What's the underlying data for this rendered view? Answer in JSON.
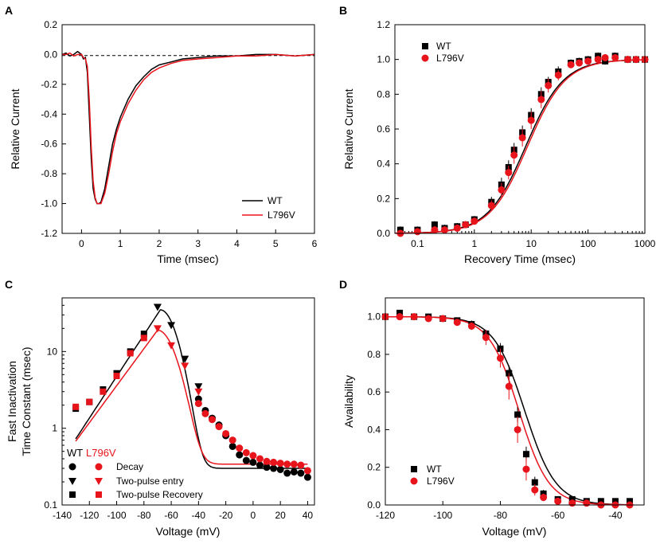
{
  "colors": {
    "wt": "#000000",
    "mut": "#e8141c",
    "axis": "#000000"
  },
  "chart_data": [
    {
      "panel": "A",
      "type": "line",
      "xlabel": "Time (msec)",
      "ylabel": "Relative Current",
      "xlim": [
        -0.5,
        6
      ],
      "ylim": [
        -1.2,
        0.2
      ],
      "xticks": [
        0,
        1,
        2,
        3,
        4,
        5,
        6
      ],
      "xtick_labels": [
        "0",
        "1",
        "2",
        "3",
        "4",
        "5",
        "6"
      ],
      "yticks": [
        -1.2,
        -1.0,
        -0.8,
        -0.6,
        -0.4,
        -0.2,
        0.0,
        0.2
      ],
      "ytick_labels": [
        "-1.2",
        "-1.0",
        "-0.8",
        "-0.6",
        "-0.4",
        "-0.2",
        "0.0",
        "0.2"
      ],
      "zero_line": 0,
      "legend_position": "bottom-right",
      "series": [
        {
          "name": "WT",
          "color": "#000000",
          "x": [
            -0.5,
            -0.4,
            -0.3,
            -0.2,
            -0.1,
            0.0,
            0.05,
            0.1,
            0.15,
            0.2,
            0.25,
            0.3,
            0.35,
            0.4,
            0.45,
            0.5,
            0.6,
            0.7,
            0.8,
            0.9,
            1.0,
            1.2,
            1.4,
            1.6,
            1.8,
            2.0,
            2.3,
            2.6,
            3.0,
            3.5,
            4.0,
            4.5,
            5.0,
            5.5,
            6.0
          ],
          "y": [
            0,
            0.01,
            -0.01,
            0.0,
            0.02,
            0.0,
            -0.03,
            -0.02,
            -0.12,
            -0.4,
            -0.7,
            -0.9,
            -0.97,
            -1.0,
            -1.0,
            -0.99,
            -0.9,
            -0.75,
            -0.6,
            -0.5,
            -0.42,
            -0.3,
            -0.21,
            -0.15,
            -0.1,
            -0.07,
            -0.05,
            -0.03,
            -0.02,
            -0.01,
            -0.01,
            0.0,
            0.0,
            -0.01,
            0.0
          ]
        },
        {
          "name": "L796V",
          "color": "#e8141c",
          "x": [
            -0.5,
            -0.4,
            -0.3,
            -0.2,
            -0.1,
            0.0,
            0.05,
            0.1,
            0.15,
            0.2,
            0.25,
            0.3,
            0.35,
            0.4,
            0.45,
            0.5,
            0.6,
            0.7,
            0.8,
            0.9,
            1.0,
            1.2,
            1.4,
            1.6,
            1.8,
            2.0,
            2.3,
            2.6,
            3.0,
            3.5,
            4.0,
            4.5,
            5.0,
            5.5,
            6.0
          ],
          "y": [
            0,
            0.0,
            0.01,
            -0.01,
            0.0,
            0.0,
            -0.02,
            -0.03,
            -0.08,
            -0.3,
            -0.62,
            -0.85,
            -0.96,
            -1.0,
            -1.0,
            -1.0,
            -0.93,
            -0.8,
            -0.65,
            -0.53,
            -0.45,
            -0.33,
            -0.24,
            -0.17,
            -0.12,
            -0.09,
            -0.06,
            -0.04,
            -0.03,
            -0.02,
            -0.01,
            -0.01,
            0.0,
            -0.01,
            0.0
          ]
        }
      ]
    },
    {
      "panel": "B",
      "type": "scatter",
      "xscale": "log",
      "xlabel": "Recovery Time (msec)",
      "ylabel": "Relative Current",
      "xlim": [
        0.04,
        1000
      ],
      "ylim": [
        0,
        1.2
      ],
      "xticks": [
        0.1,
        1,
        10,
        100,
        1000
      ],
      "xtick_labels": [
        "0.1",
        "1",
        "10",
        "100",
        "1000"
      ],
      "yticks": [
        0,
        0.2,
        0.4,
        0.6,
        0.8,
        1.0,
        1.2
      ],
      "ytick_labels": [
        "0.0",
        "0.2",
        "0.4",
        "0.6",
        "0.8",
        "1.0",
        "1.2"
      ],
      "legend_position": "top-left",
      "series": [
        {
          "name": "WT",
          "color": "#000000",
          "marker": "square",
          "x": [
            0.05,
            0.1,
            0.2,
            0.3,
            0.5,
            0.7,
            1,
            2,
            3,
            4,
            5,
            7,
            10,
            15,
            20,
            30,
            50,
            70,
            100,
            150,
            200,
            300,
            500,
            700,
            1000
          ],
          "y": [
            0.02,
            0.02,
            0.05,
            0.03,
            0.04,
            0.05,
            0.08,
            0.18,
            0.28,
            0.38,
            0.48,
            0.58,
            0.68,
            0.8,
            0.87,
            0.93,
            0.98,
            0.99,
            1.0,
            1.02,
            0.99,
            1.02,
            1.0,
            1.0,
            1.0
          ],
          "err": [
            0.02,
            0.02,
            0.02,
            0.02,
            0.02,
            0.02,
            0.02,
            0.03,
            0.04,
            0.04,
            0.04,
            0.04,
            0.04,
            0.04,
            0.03,
            0.03,
            0.02,
            0.02,
            0.02,
            0.02,
            0.02,
            0.02,
            0.02,
            0.02,
            0.02
          ]
        },
        {
          "name": "L796V",
          "color": "#e8141c",
          "marker": "circle",
          "x": [
            0.05,
            0.1,
            0.2,
            0.3,
            0.5,
            0.7,
            1,
            2,
            3,
            4,
            5,
            7,
            10,
            15,
            20,
            30,
            50,
            70,
            100,
            150,
            200,
            300,
            500,
            700,
            1000
          ],
          "y": [
            0.0,
            0.01,
            0.02,
            0.02,
            0.03,
            0.05,
            0.07,
            0.16,
            0.25,
            0.35,
            0.45,
            0.55,
            0.65,
            0.77,
            0.85,
            0.91,
            0.97,
            0.98,
            0.99,
            1.0,
            1.01,
            1.01,
            1.0,
            1.0,
            1.0
          ],
          "err": [
            0.02,
            0.02,
            0.02,
            0.02,
            0.02,
            0.02,
            0.02,
            0.03,
            0.04,
            0.04,
            0.05,
            0.05,
            0.05,
            0.05,
            0.04,
            0.03,
            0.02,
            0.02,
            0.02,
            0.02,
            0.02,
            0.02,
            0.02,
            0.02,
            0.02
          ]
        }
      ],
      "fits": [
        {
          "name": "WT",
          "color": "#000000",
          "tau": 8.0,
          "slope": 1.3
        },
        {
          "name": "L796V",
          "color": "#e8141c",
          "tau": 8.6,
          "slope": 1.3
        }
      ]
    },
    {
      "panel": "C",
      "type": "scatter",
      "yscale": "log",
      "xlabel": "Voltage (mV)",
      "ylabel": "Fast Inactivation Time Constant (msec)",
      "ylabel_lines": [
        "Fast Inactivation",
        "Time Constant (msec)"
      ],
      "xlim": [
        -140,
        45
      ],
      "ylim": [
        0.1,
        50
      ],
      "xticks": [
        -140,
        -120,
        -100,
        -80,
        -60,
        -40,
        -20,
        0,
        20,
        40
      ],
      "xtick_labels": [
        "-140",
        "-120",
        "-100",
        "-80",
        "-60",
        "-40",
        "-20",
        "0",
        "20",
        "40"
      ],
      "yticks": [
        0.1,
        1,
        10
      ],
      "ytick_labels": [
        "0.1",
        "1",
        "10"
      ],
      "legend_position": "bottom-left",
      "legend_header": [
        "WT",
        "L796V"
      ],
      "legend_rows": [
        "Decay",
        "Two-pulse entry",
        "Two-pulse Recovery"
      ],
      "series": [
        {
          "name": "WT Decay",
          "color": "#000000",
          "marker": "circle",
          "x": [
            -40,
            -35,
            -30,
            -25,
            -20,
            -15,
            -10,
            -5,
            0,
            5,
            10,
            15,
            20,
            25,
            30,
            35,
            40
          ],
          "y": [
            2.4,
            1.7,
            1.35,
            1.1,
            0.8,
            0.58,
            0.45,
            0.38,
            0.36,
            0.33,
            0.31,
            0.3,
            0.29,
            0.26,
            0.27,
            0.26,
            0.23
          ]
        },
        {
          "name": "WT Two-pulse entry",
          "color": "#000000",
          "marker": "triangle-down",
          "x": [
            -70,
            -60,
            -50,
            -40
          ],
          "y": [
            38,
            22,
            8,
            3.5
          ]
        },
        {
          "name": "WT Two-pulse Recovery",
          "color": "#000000",
          "marker": "square",
          "x": [
            -130,
            -120,
            -110,
            -100,
            -90,
            -80
          ],
          "y": [
            1.8,
            2.2,
            3.2,
            5.2,
            10,
            17
          ]
        },
        {
          "name": "L796V Decay",
          "color": "#e8141c",
          "marker": "circle",
          "x": [
            -40,
            -35,
            -30,
            -25,
            -20,
            -15,
            -10,
            -5,
            0,
            5,
            10,
            15,
            20,
            25,
            30,
            35,
            40
          ],
          "y": [
            2.1,
            1.55,
            1.3,
            1.05,
            0.85,
            0.7,
            0.55,
            0.48,
            0.44,
            0.4,
            0.37,
            0.36,
            0.35,
            0.34,
            0.34,
            0.33,
            0.28
          ]
        },
        {
          "name": "L796V Two-pulse entry",
          "color": "#e8141c",
          "marker": "triangle-down",
          "x": [
            -70,
            -60,
            -50,
            -40
          ],
          "y": [
            20,
            12,
            6.5,
            3
          ]
        },
        {
          "name": "L796V Two-pulse Recovery",
          "color": "#e8141c",
          "marker": "square",
          "x": [
            -130,
            -120,
            -110,
            -100,
            -90,
            -80
          ],
          "y": [
            1.9,
            2.2,
            3.0,
            4.8,
            9.5,
            15
          ]
        }
      ],
      "fits": [
        {
          "name": "WT",
          "color": "#000000",
          "peak_v": -68,
          "peak_tau": 35,
          "base": 0.3,
          "left_k": 16,
          "right_k": 9
        },
        {
          "name": "L796V",
          "color": "#e8141c",
          "peak_v": -70,
          "peak_tau": 19,
          "base": 0.34,
          "left_k": 18,
          "right_k": 10
        }
      ]
    },
    {
      "panel": "D",
      "type": "scatter",
      "xlabel": "Voltage (mV)",
      "ylabel": "Availability",
      "xlim": [
        -120,
        -30
      ],
      "ylim": [
        0,
        1.1
      ],
      "xticks": [
        -120,
        -100,
        -80,
        -60,
        -40
      ],
      "xtick_labels": [
        "-120",
        "-100",
        "-80",
        "-60",
        "-40"
      ],
      "yticks": [
        0,
        0.2,
        0.4,
        0.6,
        0.8,
        1.0
      ],
      "ytick_labels": [
        "0.0",
        "0.2",
        "0.4",
        "0.6",
        "0.8",
        "1.0"
      ],
      "legend_position": "bottom-left",
      "series": [
        {
          "name": "WT",
          "color": "#000000",
          "marker": "square",
          "x": [
            -120,
            -115,
            -110,
            -105,
            -100,
            -95,
            -90,
            -85,
            -80,
            -77,
            -74,
            -71,
            -68,
            -65,
            -60,
            -55,
            -50,
            -45,
            -40,
            -35
          ],
          "y": [
            1.0,
            1.02,
            1.0,
            1.0,
            0.99,
            0.98,
            0.96,
            0.91,
            0.83,
            0.7,
            0.48,
            0.27,
            0.12,
            0.06,
            0.03,
            0.03,
            0.02,
            0.02,
            0.02,
            0.02
          ],
          "err": [
            0.01,
            0.01,
            0.01,
            0.01,
            0.01,
            0.01,
            0.02,
            0.02,
            0.03,
            0.04,
            0.04,
            0.04,
            0.03,
            0.02,
            0.01,
            0.01,
            0.01,
            0.01,
            0.01,
            0.01
          ]
        },
        {
          "name": "L796V",
          "color": "#e8141c",
          "marker": "circle",
          "x": [
            -120,
            -115,
            -110,
            -105,
            -100,
            -95,
            -90,
            -85,
            -80,
            -77,
            -74,
            -71,
            -68,
            -65,
            -60,
            -55,
            -50,
            -45,
            -40,
            -35
          ],
          "y": [
            1.0,
            1.0,
            1.0,
            0.99,
            0.99,
            0.97,
            0.95,
            0.89,
            0.78,
            0.63,
            0.4,
            0.19,
            0.08,
            0.04,
            0.02,
            0.01,
            0.01,
            0.0,
            0.0,
            0.0
          ],
          "err": [
            0.01,
            0.01,
            0.01,
            0.01,
            0.01,
            0.01,
            0.02,
            0.04,
            0.05,
            0.07,
            0.07,
            0.06,
            0.03,
            0.02,
            0.01,
            0.01,
            0.01,
            0.01,
            0.01,
            0.01
          ]
        }
      ],
      "fits": [
        {
          "name": "WT",
          "color": "#000000",
          "v_half": -71.5,
          "k": 5.4
        },
        {
          "name": "L796V",
          "color": "#e8141c",
          "v_half": -73.5,
          "k": 5.2
        }
      ]
    }
  ],
  "panel_labels": [
    "A",
    "B",
    "C",
    "D"
  ]
}
